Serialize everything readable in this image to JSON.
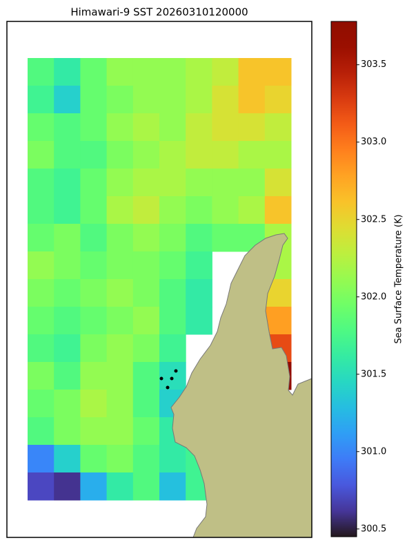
{
  "chart_data": {
    "type": "heatmap",
    "title": "Himawari-9 SST 20260310120000",
    "colormap": "turbo",
    "colorbar_label": "Sea Surface Temperature (K)",
    "clim": [
      300.45,
      303.78
    ],
    "cticks": [
      300.5,
      {
        "value": 301,
        "label": "301.0"
      },
      301.5,
      {
        "value": 302,
        "label": "302.0"
      },
      302.5,
      {
        "value": 303,
        "label": "303.0"
      },
      303.5
    ],
    "values": [
      [
        301.8,
        301.6,
        301.9,
        302.1,
        302.1,
        302.1,
        302.2,
        302.3,
        302.6,
        302.6
      ],
      [
        301.7,
        301.4,
        301.9,
        302.0,
        302.1,
        302.1,
        302.2,
        302.4,
        302.6,
        302.5
      ],
      [
        301.9,
        301.8,
        301.9,
        302.1,
        302.2,
        302.1,
        302.3,
        302.4,
        302.4,
        302.3
      ],
      [
        302.0,
        301.8,
        301.8,
        302.0,
        302.1,
        302.2,
        302.3,
        302.3,
        302.2,
        302.2
      ],
      [
        301.8,
        301.7,
        301.9,
        302.1,
        302.2,
        302.2,
        302.1,
        302.1,
        302.1,
        302.4
      ],
      [
        301.8,
        301.7,
        301.9,
        302.2,
        302.3,
        302.1,
        302.0,
        302.1,
        302.2,
        302.6
      ],
      [
        301.9,
        302.0,
        301.8,
        302.0,
        302.1,
        302.0,
        301.8,
        301.9,
        301.9,
        302.2
      ],
      [
        302.1,
        302.0,
        301.9,
        302.0,
        302.0,
        301.9,
        301.7,
        null,
        null,
        302.2
      ],
      [
        302.0,
        301.9,
        302.0,
        302.1,
        302.0,
        301.8,
        301.6,
        null,
        null,
        302.5
      ],
      [
        301.9,
        301.8,
        301.9,
        302.0,
        302.1,
        301.8,
        301.6,
        null,
        null,
        302.8
      ],
      [
        301.8,
        301.7,
        302.0,
        302.1,
        302.0,
        301.7,
        null,
        null,
        null,
        303.2
      ],
      [
        302.0,
        301.8,
        302.1,
        302.1,
        301.8,
        301.5,
        null,
        null,
        null,
        303.7
      ],
      [
        301.9,
        302.0,
        302.2,
        302.1,
        301.8,
        301.4,
        null,
        null,
        null,
        null
      ],
      [
        301.8,
        302.0,
        302.1,
        302.1,
        301.9,
        301.6,
        null,
        null,
        null,
        null
      ],
      [
        301.0,
        301.4,
        301.9,
        302.0,
        301.8,
        301.6,
        301.7,
        null,
        null,
        null
      ],
      [
        300.7,
        300.6,
        301.2,
        301.6,
        301.8,
        301.3,
        301.7,
        null,
        null,
        null
      ]
    ]
  }
}
